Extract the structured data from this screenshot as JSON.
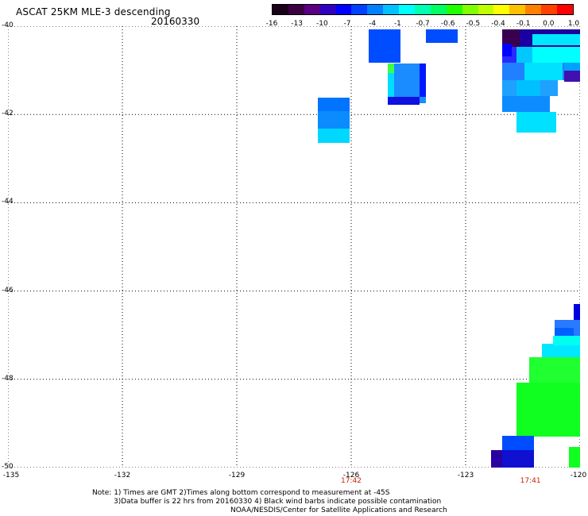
{
  "header": {
    "title": "ASCAT 25KM MLE-3 descending",
    "date": "20160330"
  },
  "colorbar": {
    "labels": [
      "-16",
      "-13",
      "-10",
      "-7",
      "-4",
      "-1",
      "-0.7",
      "-0.6",
      "-0.5",
      "-0.4",
      "-0.1",
      "0.0",
      "1.0"
    ],
    "colors": [
      "#1a0018",
      "#3a0040",
      "#5a0080",
      "#3000c0",
      "#0000ff",
      "#0040ff",
      "#0080ff",
      "#00c0ff",
      "#00ffff",
      "#00ffb0",
      "#00ff60",
      "#20ff00",
      "#80ff00",
      "#c0ff00",
      "#ffff00",
      "#ffc000",
      "#ff8000",
      "#ff4000",
      "#ff0000"
    ]
  },
  "map": {
    "y_ticks": [
      "-40",
      "-42",
      "-44",
      "-46",
      "-48",
      "-50"
    ],
    "x_ticks": [
      "-135",
      "-132",
      "-129",
      "-126",
      "-123",
      "-120"
    ],
    "times": [
      {
        "label": "17:42",
        "lon": -126
      },
      {
        "label": "17:41",
        "lon": -121.3
      }
    ]
  },
  "notes": {
    "line1": "Note: 1) Times are GMT 2)Times along bottom correspond to measurement at -45S",
    "line2": "3)Data buffer is 22 hrs from 20160330 4) Black wind barbs indicate possible contamination",
    "line3": "NOAA/NESDIS/Center for Satellite Applications and Research"
  }
}
